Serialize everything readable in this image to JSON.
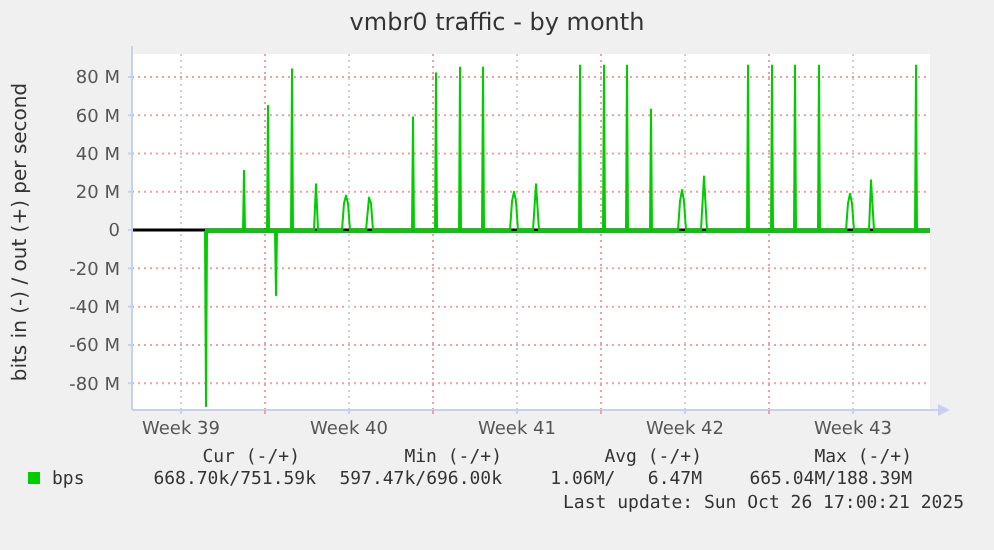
{
  "chart_data": {
    "type": "line",
    "title": "vmbr0 traffic - by month",
    "ylabel": "bits in (-) / out (+) per second",
    "xlim": [
      "2025-09-23T11:00",
      "2025-10-26T17:00"
    ],
    "xticks": [
      {
        "value": "2025-09-25T12:00",
        "label": "Week 39"
      },
      {
        "value": "2025-09-29",
        "label": null
      },
      {
        "value": "2025-10-02T12:00",
        "label": "Week 40"
      },
      {
        "value": "2025-10-06",
        "label": null
      },
      {
        "value": "2025-10-09T12:00",
        "label": "Week 41"
      },
      {
        "value": "2025-10-13",
        "label": null
      },
      {
        "value": "2025-10-16T12:00",
        "label": "Week 42"
      },
      {
        "value": "2025-10-20",
        "label": null
      },
      {
        "value": "2025-10-23T12:00",
        "label": "Week 43"
      }
    ],
    "ylim": [
      -94,
      92
    ],
    "yticks": [
      {
        "value": -80,
        "label": "-80 M"
      },
      {
        "value": -60,
        "label": "-60 M"
      },
      {
        "value": -40,
        "label": "-40 M"
      },
      {
        "value": -20,
        "label": "-20 M"
      },
      0,
      {
        "value": 20,
        "label": "20 M"
      },
      {
        "value": 40,
        "label": "40 M"
      },
      {
        "value": 60,
        "label": "60 M"
      },
      {
        "value": 80,
        "label": "80 M"
      }
    ],
    "grid": true,
    "legend": "bottom",
    "marker": "none",
    "line_style": "solid",
    "ref_lines": [
      {
        "axis": "y",
        "value": 0,
        "color": "#000000"
      }
    ],
    "series": [
      {
        "name": "bps",
        "color": "#00cc00",
        "x": [
          "2025-09-26T12:00",
          "2025-09-28T02:00",
          "2025-09-28T03:00",
          "2025-09-28T04:00",
          "2025-09-29T02:00",
          "2025-09-29T03:00",
          "2025-09-29T04:00",
          "2025-09-30T02:00",
          "2025-09-30T03:00",
          "2025-09-30T04:00",
          "2025-10-01T01:00",
          "2025-10-01T03:00",
          "2025-10-01T05:00",
          "2025-10-02T05:00",
          "2025-10-02T07:00",
          "2025-10-02T09:00",
          "2025-10-02T11:00",
          "2025-10-02T13:00",
          "2025-10-03T05:00",
          "2025-10-03T08:00",
          "2025-10-03T10:00",
          "2025-10-03T12:00",
          "2025-10-05T03:00",
          "2025-10-05T04:00",
          "2025-10-05T05:00",
          "2025-10-06T02:00",
          "2025-10-06T03:00",
          "2025-10-06T04:00",
          "2025-10-07T02:00",
          "2025-10-07T03:00",
          "2025-10-07T04:00",
          "2025-10-08T01:00",
          "2025-10-08T02:00",
          "2025-10-08T03:00",
          "2025-10-09T05:00",
          "2025-10-09T07:00",
          "2025-10-09T09:00",
          "2025-10-09T11:00",
          "2025-10-09T13:00",
          "2025-10-10T04:00",
          "2025-10-10T07:00",
          "2025-10-10T10:00",
          "2025-10-12T02:00",
          "2025-10-12T03:00",
          "2025-10-12T04:00",
          "2025-10-13T02:00",
          "2025-10-13T03:00",
          "2025-10-13T04:00",
          "2025-10-14T01:00",
          "2025-10-14T02:00",
          "2025-10-14T03:00",
          "2025-10-15T01:00",
          "2025-10-15T02:00",
          "2025-10-15T03:00",
          "2025-10-16T05:00",
          "2025-10-16T07:00",
          "2025-10-16T09:00",
          "2025-10-16T11:00",
          "2025-10-16T13:00",
          "2025-10-17T04:00",
          "2025-10-17T07:00",
          "2025-10-17T10:00",
          "2025-10-19T02:00",
          "2025-10-19T03:00",
          "2025-10-19T04:00",
          "2025-10-20T02:00",
          "2025-10-20T03:00",
          "2025-10-20T04:00",
          "2025-10-21T01:00",
          "2025-10-21T02:00",
          "2025-10-21T03:00",
          "2025-10-22T01:00",
          "2025-10-22T02:00",
          "2025-10-22T03:00",
          "2025-10-23T05:00",
          "2025-10-23T07:00",
          "2025-10-23T09:00",
          "2025-10-23T11:00",
          "2025-10-23T13:00",
          "2025-10-24T04:00",
          "2025-10-24T06:00",
          "2025-10-24T09:00",
          "2025-10-26T02:00",
          "2025-10-26T03:00",
          "2025-10-26T04:00",
          "2025-10-26T17:00"
        ],
        "values": [
          0,
          0,
          31,
          0,
          0,
          65,
          0,
          0,
          84,
          0,
          0,
          24,
          0,
          0,
          14,
          18,
          14,
          0,
          0,
          17,
          14,
          0,
          0,
          59,
          0,
          0,
          82,
          0,
          0,
          85,
          0,
          0,
          85,
          0,
          0,
          15,
          20,
          15,
          0,
          0,
          24,
          0,
          0,
          86,
          0,
          0,
          86,
          0,
          0,
          86,
          0,
          0,
          63,
          0,
          0,
          15,
          21,
          15,
          0,
          0,
          28,
          0,
          0,
          86,
          0,
          0,
          86,
          0,
          0,
          86,
          0,
          0,
          86,
          0,
          0,
          14,
          19,
          14,
          0,
          0,
          26,
          0,
          0,
          86,
          0,
          0
        ]
      },
      {
        "color": "#00cc00",
        "x": [
          "2025-09-26T12:00",
          "2025-09-26T13:00",
          "2025-09-26T14:00",
          "2025-09-29T10:00",
          "2025-09-29T11:00",
          "2025-09-29T12:00",
          "2025-10-26T17:00"
        ],
        "values": [
          -1,
          -92,
          -1,
          -1,
          -34,
          -1,
          -1
        ]
      }
    ],
    "annotations": [
      "Cur (-/+)",
      "Min (-/+)",
      "Avg (-/+)",
      "Max (-/+)",
      "668.70k/751.59k",
      "597.47k/696.00k",
      "1.06M/   6.47M",
      "665.04M/188.39M",
      "Last update: Sun Oct 26 17:00:21 2025"
    ]
  }
}
